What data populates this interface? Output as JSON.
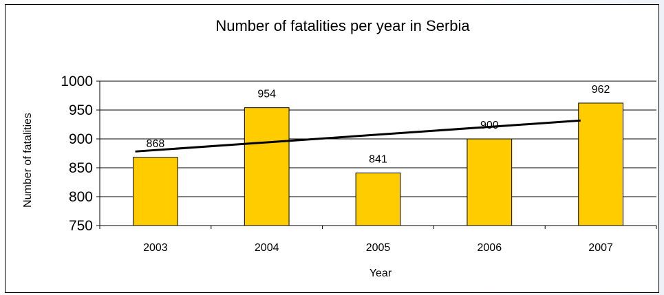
{
  "chart_data": {
    "type": "bar",
    "title": "Number of fatalities per year in Serbia",
    "xlabel": "Year",
    "ylabel": "Number of fatalities",
    "categories": [
      "2003",
      "2004",
      "2005",
      "2006",
      "2007"
    ],
    "values": [
      868,
      954,
      841,
      900,
      962
    ],
    "data_labels": [
      "868",
      "954",
      "841",
      "900",
      "962"
    ],
    "ylim": [
      750,
      1000
    ],
    "yticks": [
      750,
      800,
      850,
      900,
      950,
      1000
    ],
    "ytick_labels": [
      "750",
      "800",
      "850",
      "900",
      "950",
      "1000"
    ],
    "grid": "horizontal",
    "legend": "none",
    "trendline": {
      "type": "linear",
      "color": "#000000"
    },
    "bar_color": "#FFCC00",
    "bar_edge_color": "#000000"
  }
}
